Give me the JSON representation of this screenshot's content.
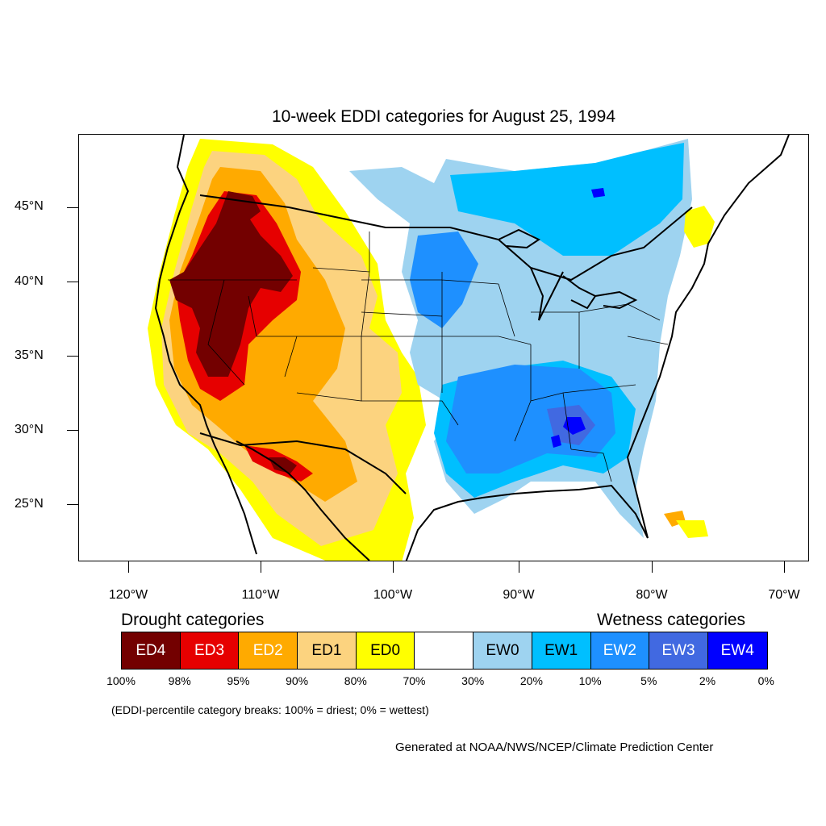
{
  "title": "10-week EDDI categories for August 25, 1994",
  "lat_labels": [
    "45°N",
    "40°N",
    "35°N",
    "30°N",
    "25°N"
  ],
  "lon_labels": [
    "120°W",
    "110°W",
    "100°W",
    "90°W",
    "80°W",
    "70°W"
  ],
  "legend": {
    "drought_heading": "Drought categories",
    "wetness_heading": "Wetness categories",
    "categories": [
      {
        "label": "ED4",
        "color": "#730000",
        "text_color": "#ffffff"
      },
      {
        "label": "ED3",
        "color": "#e60000",
        "text_color": "#ffffff"
      },
      {
        "label": "ED2",
        "color": "#ffaa00",
        "text_color": "#ffffff"
      },
      {
        "label": "ED1",
        "color": "#fcd37f",
        "text_color": "#000000"
      },
      {
        "label": "ED0",
        "color": "#ffff00",
        "text_color": "#000000"
      },
      {
        "label": "",
        "color": "#ffffff",
        "text_color": "#000000"
      },
      {
        "label": "EW0",
        "color": "#9ed3f0",
        "text_color": "#000000"
      },
      {
        "label": "EW1",
        "color": "#00bfff",
        "text_color": "#000000"
      },
      {
        "label": "EW2",
        "color": "#1e90ff",
        "text_color": "#ffffff"
      },
      {
        "label": "EW3",
        "color": "#4169e1",
        "text_color": "#ffffff"
      },
      {
        "label": "EW4",
        "color": "#0000ff",
        "text_color": "#ffffff"
      }
    ],
    "percentiles": [
      "100%",
      "98%",
      "95%",
      "90%",
      "80%",
      "70%",
      "30%",
      "20%",
      "10%",
      "5%",
      "2%",
      "0%"
    ]
  },
  "note": "(EDDI-percentile category breaks: 100% = driest; 0% = wettest)",
  "credit": "Generated at NOAA/NWS/NCEP/Climate Prediction Center"
}
